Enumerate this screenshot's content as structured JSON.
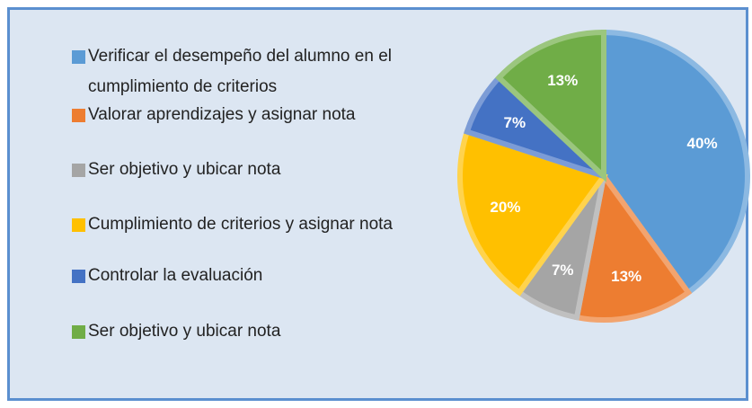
{
  "chart_data": {
    "type": "pie",
    "categories": [
      "Verificar el desempeño del alumno en el cumplimiento de criterios",
      "Valorar aprendizajes y asignar nota",
      "Ser objetivo y ubicar nota",
      "Cumplimiento de criterios y asignar nota",
      "Controlar la evaluación",
      "Ser objetivo y ubicar nota"
    ],
    "values": [
      40,
      13,
      7,
      20,
      7,
      13
    ],
    "value_labels": [
      "40%",
      "13%",
      "7%",
      "20%",
      "7%",
      "13%"
    ],
    "colors": [
      "#5b9bd5",
      "#ed7d31",
      "#a5a5a5",
      "#ffc000",
      "#4472c4",
      "#70ad47"
    ]
  }
}
